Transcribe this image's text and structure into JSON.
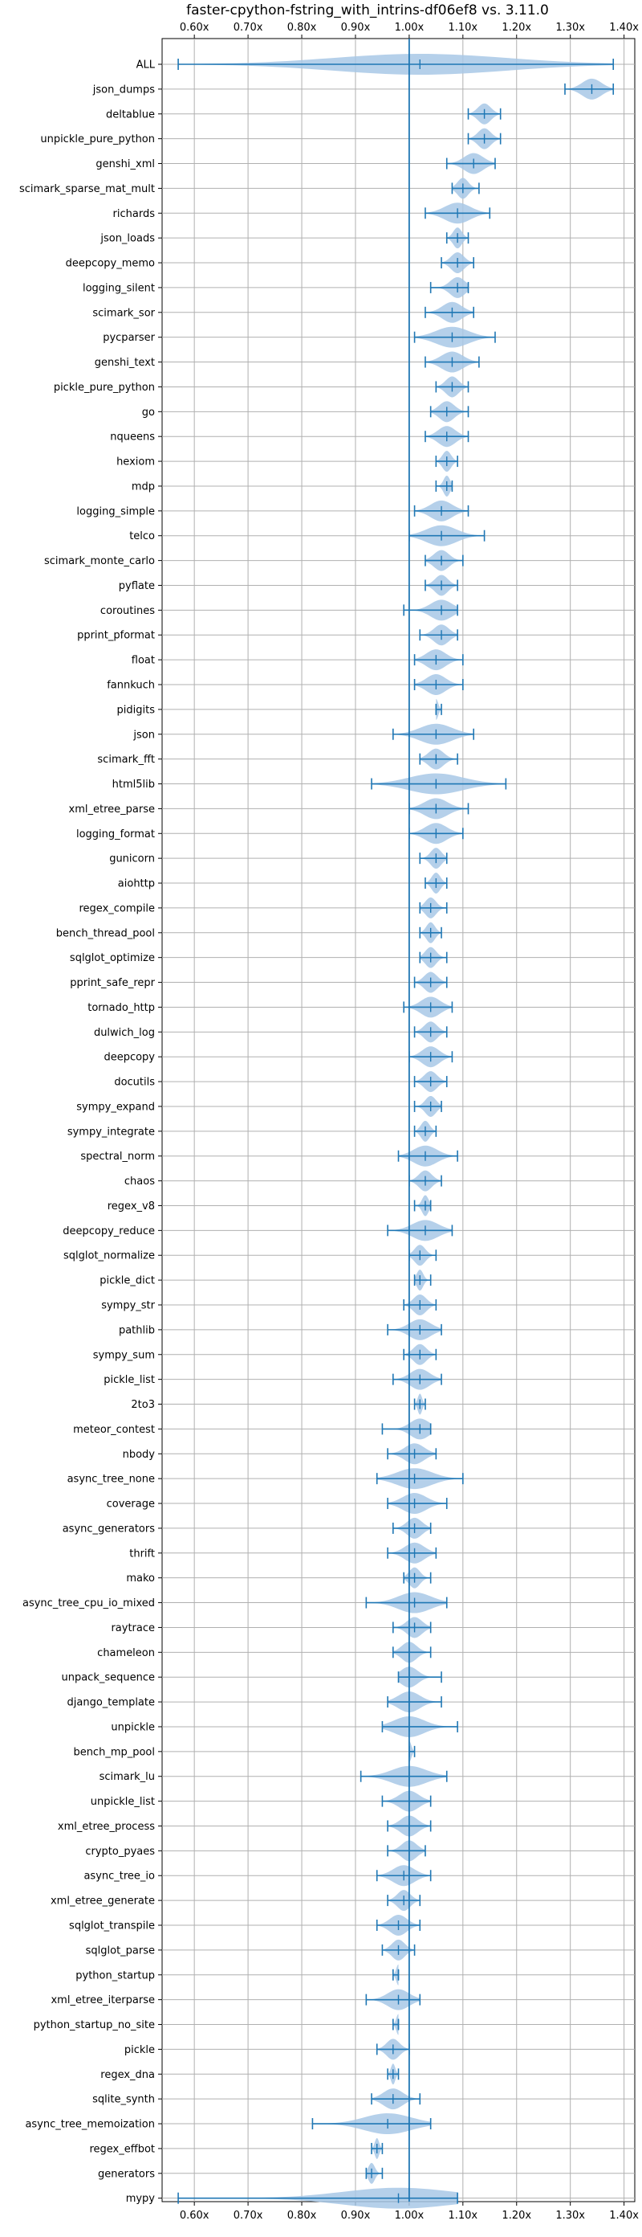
{
  "chart_data": {
    "type": "violin",
    "title": "faster-cpython-fstring_with_intrins-df06ef8 vs. 3.11.0",
    "x_tick_labels": [
      "0.60x",
      "0.70x",
      "0.80x",
      "0.90x",
      "1.00x",
      "1.10x",
      "1.20x",
      "1.30x",
      "1.40x"
    ],
    "x_ticks": [
      0.6,
      0.7,
      0.8,
      0.9,
      1.0,
      1.1,
      1.2,
      1.3,
      1.4
    ],
    "xlim": [
      0.54,
      1.42
    ],
    "reference_line": 1.0,
    "grid": true,
    "colors": {
      "line": "#1f77b4",
      "violin_fill": "#a8c8e6",
      "grid": "#b0b0b0"
    },
    "benchmarks": [
      {
        "name": "ALL",
        "min": 0.57,
        "max": 1.38,
        "mean": 1.02
      },
      {
        "name": "json_dumps",
        "min": 1.29,
        "max": 1.38,
        "mean": 1.34
      },
      {
        "name": "deltablue",
        "min": 1.11,
        "max": 1.17,
        "mean": 1.14
      },
      {
        "name": "unpickle_pure_python",
        "min": 1.11,
        "max": 1.17,
        "mean": 1.14
      },
      {
        "name": "genshi_xml",
        "min": 1.07,
        "max": 1.16,
        "mean": 1.12
      },
      {
        "name": "scimark_sparse_mat_mult",
        "min": 1.08,
        "max": 1.13,
        "mean": 1.1
      },
      {
        "name": "richards",
        "min": 1.03,
        "max": 1.15,
        "mean": 1.09
      },
      {
        "name": "json_loads",
        "min": 1.07,
        "max": 1.11,
        "mean": 1.09
      },
      {
        "name": "deepcopy_memo",
        "min": 1.06,
        "max": 1.12,
        "mean": 1.09
      },
      {
        "name": "logging_silent",
        "min": 1.04,
        "max": 1.11,
        "mean": 1.09
      },
      {
        "name": "scimark_sor",
        "min": 1.03,
        "max": 1.12,
        "mean": 1.08
      },
      {
        "name": "pycparser",
        "min": 1.01,
        "max": 1.16,
        "mean": 1.08
      },
      {
        "name": "genshi_text",
        "min": 1.03,
        "max": 1.13,
        "mean": 1.08
      },
      {
        "name": "pickle_pure_python",
        "min": 1.05,
        "max": 1.11,
        "mean": 1.08
      },
      {
        "name": "go",
        "min": 1.04,
        "max": 1.11,
        "mean": 1.07
      },
      {
        "name": "nqueens",
        "min": 1.03,
        "max": 1.11,
        "mean": 1.07
      },
      {
        "name": "hexiom",
        "min": 1.05,
        "max": 1.09,
        "mean": 1.07
      },
      {
        "name": "mdp",
        "min": 1.05,
        "max": 1.08,
        "mean": 1.07
      },
      {
        "name": "logging_simple",
        "min": 1.01,
        "max": 1.11,
        "mean": 1.06
      },
      {
        "name": "telco",
        "min": 1.0,
        "max": 1.14,
        "mean": 1.06
      },
      {
        "name": "scimark_monte_carlo",
        "min": 1.03,
        "max": 1.1,
        "mean": 1.06
      },
      {
        "name": "pyflate",
        "min": 1.03,
        "max": 1.09,
        "mean": 1.06
      },
      {
        "name": "coroutines",
        "min": 0.99,
        "max": 1.09,
        "mean": 1.06
      },
      {
        "name": "pprint_pformat",
        "min": 1.02,
        "max": 1.09,
        "mean": 1.06
      },
      {
        "name": "float",
        "min": 1.01,
        "max": 1.1,
        "mean": 1.05
      },
      {
        "name": "fannkuch",
        "min": 1.01,
        "max": 1.1,
        "mean": 1.05
      },
      {
        "name": "pidigits",
        "min": 1.05,
        "max": 1.06,
        "mean": 1.05
      },
      {
        "name": "json",
        "min": 0.97,
        "max": 1.12,
        "mean": 1.05
      },
      {
        "name": "scimark_fft",
        "min": 1.02,
        "max": 1.09,
        "mean": 1.05
      },
      {
        "name": "html5lib",
        "min": 0.93,
        "max": 1.18,
        "mean": 1.05
      },
      {
        "name": "xml_etree_parse",
        "min": 1.0,
        "max": 1.11,
        "mean": 1.05
      },
      {
        "name": "logging_format",
        "min": 1.0,
        "max": 1.1,
        "mean": 1.05
      },
      {
        "name": "gunicorn",
        "min": 1.02,
        "max": 1.07,
        "mean": 1.05
      },
      {
        "name": "aiohttp",
        "min": 1.03,
        "max": 1.07,
        "mean": 1.05
      },
      {
        "name": "regex_compile",
        "min": 1.02,
        "max": 1.07,
        "mean": 1.04
      },
      {
        "name": "bench_thread_pool",
        "min": 1.02,
        "max": 1.06,
        "mean": 1.04
      },
      {
        "name": "sqlglot_optimize",
        "min": 1.02,
        "max": 1.07,
        "mean": 1.04
      },
      {
        "name": "pprint_safe_repr",
        "min": 1.01,
        "max": 1.07,
        "mean": 1.04
      },
      {
        "name": "tornado_http",
        "min": 0.99,
        "max": 1.08,
        "mean": 1.04
      },
      {
        "name": "dulwich_log",
        "min": 1.01,
        "max": 1.07,
        "mean": 1.04
      },
      {
        "name": "deepcopy",
        "min": 1.0,
        "max": 1.08,
        "mean": 1.04
      },
      {
        "name": "docutils",
        "min": 1.01,
        "max": 1.07,
        "mean": 1.04
      },
      {
        "name": "sympy_expand",
        "min": 1.01,
        "max": 1.06,
        "mean": 1.04
      },
      {
        "name": "sympy_integrate",
        "min": 1.01,
        "max": 1.05,
        "mean": 1.03
      },
      {
        "name": "spectral_norm",
        "min": 0.98,
        "max": 1.09,
        "mean": 1.03
      },
      {
        "name": "chaos",
        "min": 1.0,
        "max": 1.06,
        "mean": 1.03
      },
      {
        "name": "regex_v8",
        "min": 1.01,
        "max": 1.04,
        "mean": 1.03
      },
      {
        "name": "deepcopy_reduce",
        "min": 0.96,
        "max": 1.08,
        "mean": 1.03
      },
      {
        "name": "sqlglot_normalize",
        "min": 1.0,
        "max": 1.05,
        "mean": 1.02
      },
      {
        "name": "pickle_dict",
        "min": 1.01,
        "max": 1.04,
        "mean": 1.02
      },
      {
        "name": "sympy_str",
        "min": 0.99,
        "max": 1.05,
        "mean": 1.02
      },
      {
        "name": "pathlib",
        "min": 0.96,
        "max": 1.06,
        "mean": 1.02
      },
      {
        "name": "sympy_sum",
        "min": 0.99,
        "max": 1.05,
        "mean": 1.02
      },
      {
        "name": "pickle_list",
        "min": 0.97,
        "max": 1.06,
        "mean": 1.02
      },
      {
        "name": "2to3",
        "min": 1.01,
        "max": 1.03,
        "mean": 1.02
      },
      {
        "name": "meteor_contest",
        "min": 0.95,
        "max": 1.04,
        "mean": 1.02
      },
      {
        "name": "nbody",
        "min": 0.96,
        "max": 1.05,
        "mean": 1.01
      },
      {
        "name": "async_tree_none",
        "min": 0.94,
        "max": 1.1,
        "mean": 1.01
      },
      {
        "name": "coverage",
        "min": 0.96,
        "max": 1.07,
        "mean": 1.01
      },
      {
        "name": "async_generators",
        "min": 0.97,
        "max": 1.04,
        "mean": 1.01
      },
      {
        "name": "thrift",
        "min": 0.96,
        "max": 1.05,
        "mean": 1.01
      },
      {
        "name": "mako",
        "min": 0.99,
        "max": 1.04,
        "mean": 1.01
      },
      {
        "name": "async_tree_cpu_io_mixed",
        "min": 0.92,
        "max": 1.07,
        "mean": 1.01
      },
      {
        "name": "raytrace",
        "min": 0.97,
        "max": 1.04,
        "mean": 1.01
      },
      {
        "name": "chameleon",
        "min": 0.97,
        "max": 1.04,
        "mean": 1.0
      },
      {
        "name": "unpack_sequence",
        "min": 0.98,
        "max": 1.06,
        "mean": 1.0
      },
      {
        "name": "django_template",
        "min": 0.96,
        "max": 1.06,
        "mean": 1.0
      },
      {
        "name": "unpickle",
        "min": 0.95,
        "max": 1.09,
        "mean": 1.0
      },
      {
        "name": "bench_mp_pool",
        "min": 1.0,
        "max": 1.01,
        "mean": 1.0
      },
      {
        "name": "scimark_lu",
        "min": 0.91,
        "max": 1.07,
        "mean": 1.0
      },
      {
        "name": "unpickle_list",
        "min": 0.95,
        "max": 1.04,
        "mean": 1.0
      },
      {
        "name": "xml_etree_process",
        "min": 0.96,
        "max": 1.04,
        "mean": 1.0
      },
      {
        "name": "crypto_pyaes",
        "min": 0.96,
        "max": 1.03,
        "mean": 1.0
      },
      {
        "name": "async_tree_io",
        "min": 0.94,
        "max": 1.04,
        "mean": 0.99
      },
      {
        "name": "xml_etree_generate",
        "min": 0.96,
        "max": 1.02,
        "mean": 0.99
      },
      {
        "name": "sqlglot_transpile",
        "min": 0.94,
        "max": 1.02,
        "mean": 0.98
      },
      {
        "name": "sqlglot_parse",
        "min": 0.95,
        "max": 1.01,
        "mean": 0.98
      },
      {
        "name": "python_startup",
        "min": 0.97,
        "max": 0.98,
        "mean": 0.98
      },
      {
        "name": "xml_etree_iterparse",
        "min": 0.92,
        "max": 1.02,
        "mean": 0.98
      },
      {
        "name": "python_startup_no_site",
        "min": 0.97,
        "max": 0.98,
        "mean": 0.98
      },
      {
        "name": "pickle",
        "min": 0.94,
        "max": 1.0,
        "mean": 0.97
      },
      {
        "name": "regex_dna",
        "min": 0.96,
        "max": 0.98,
        "mean": 0.97
      },
      {
        "name": "sqlite_synth",
        "min": 0.93,
        "max": 1.02,
        "mean": 0.97
      },
      {
        "name": "async_tree_memoization",
        "min": 0.82,
        "max": 1.04,
        "mean": 0.96
      },
      {
        "name": "regex_effbot",
        "min": 0.93,
        "max": 0.95,
        "mean": 0.94
      },
      {
        "name": "generators",
        "min": 0.92,
        "max": 0.95,
        "mean": 0.93
      },
      {
        "name": "mypy",
        "min": 0.57,
        "max": 1.09,
        "mean": 0.98
      }
    ]
  }
}
